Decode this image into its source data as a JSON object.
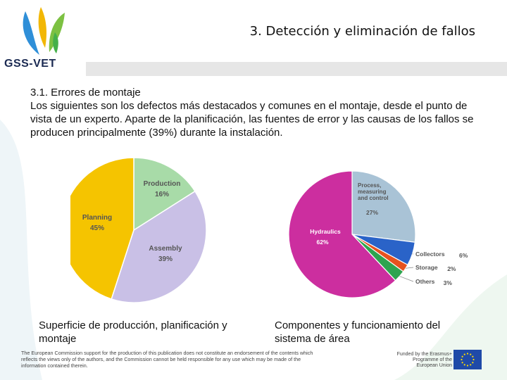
{
  "header": {
    "logo_text": "GSS-VET",
    "title": "3. Detección y eliminación de fallos"
  },
  "content": {
    "heading": "3.1. Errores de montaje",
    "paragraph": "Los siguientes son los defectos más destacados y comunes en el montaje, desde el punto de vista de un experto. Aparte de la planificación, las fuentes de error y las causas de los fallos se producen principalmente (39%) durante la instalación."
  },
  "captions": {
    "left": "Superficie de producción, planificación y montaje",
    "right": "Componentes y funcionamiento del sistema de área"
  },
  "footer": {
    "disclaimer": "The European Commission support for the production of this publication does not constitute an endorsement of the contents which reflects the views only of the authors, and the Commission cannot be held responsible for any use which may be made of the information contained therein.",
    "funded": "Funded by the Erasmus+ Programme of the European Union"
  },
  "colors": {
    "production": "#a8dba8",
    "assembly": "#c9c0e6",
    "planning": "#f5c400",
    "hydraulics": "#cc2e9f",
    "process": "#a9c3d6",
    "collectors": "#2a63c8",
    "storage": "#e6521f",
    "others": "#2ea44f"
  },
  "chart_data": [
    {
      "type": "pie",
      "slices": [
        {
          "label": "Production",
          "value": 16,
          "display": "16%"
        },
        {
          "label": "Assembly",
          "value": 39,
          "display": "39%"
        },
        {
          "label": "Planning",
          "value": 45,
          "display": "45%"
        }
      ]
    },
    {
      "type": "pie",
      "slices": [
        {
          "label": "Process, measuring and control",
          "value": 27,
          "display": "27%"
        },
        {
          "label": "Collectors",
          "value": 6,
          "display": "6%"
        },
        {
          "label": "Storage",
          "value": 2,
          "display": "2%"
        },
        {
          "label": "Others",
          "value": 3,
          "display": "3%"
        },
        {
          "label": "Hydraulics",
          "value": 62,
          "display": "62%"
        }
      ]
    }
  ]
}
